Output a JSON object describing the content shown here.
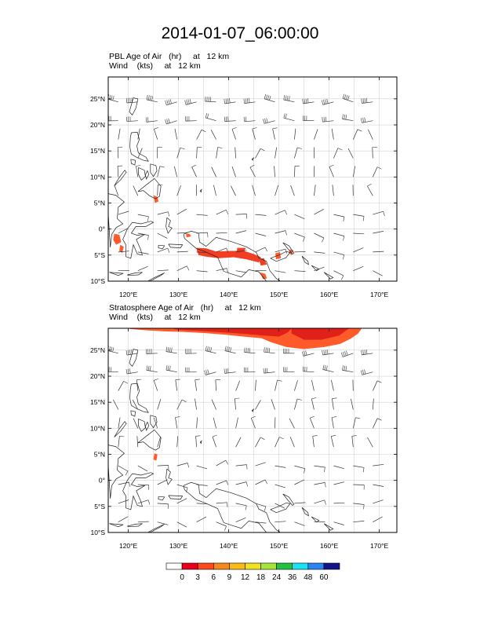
{
  "title": "2014-01-07_06:00:00",
  "panels": [
    {
      "field_line": "PBL Age of Air   (hr)     at   12 km",
      "wind_line": "Wind    (kts)     at   12 km"
    },
    {
      "field_line": "Stratosphere Age of Air   (hr)     at   12 km",
      "wind_line": "Wind    (kts)     at   12 km"
    }
  ],
  "lat_labels": [
    "25°N",
    "20°N",
    "15°N",
    "10°N",
    "5°N",
    "0°",
    "5°S",
    "10°S"
  ],
  "lon_labels": [
    "120°E",
    "130°E",
    "140°E",
    "150°E",
    "160°E",
    "170°E"
  ],
  "colorbar": {
    "labels": [
      "0",
      "3",
      "6",
      "9",
      "12",
      "18",
      "24",
      "36",
      "48",
      "60"
    ],
    "colors": [
      "#ffffff",
      "#e8001a",
      "#ff4a1a",
      "#f6891d",
      "#f8bb18",
      "#f2e21d",
      "#a6e63a",
      "#22c23f",
      "#19e2f2",
      "#2c85ee",
      "#14148a"
    ]
  },
  "colors": {
    "plume_light": "#ff5a2a",
    "plume_dark": "#e2201a",
    "coast": "#222222",
    "grid": "#d2d2d2",
    "wind": "#333333"
  }
}
